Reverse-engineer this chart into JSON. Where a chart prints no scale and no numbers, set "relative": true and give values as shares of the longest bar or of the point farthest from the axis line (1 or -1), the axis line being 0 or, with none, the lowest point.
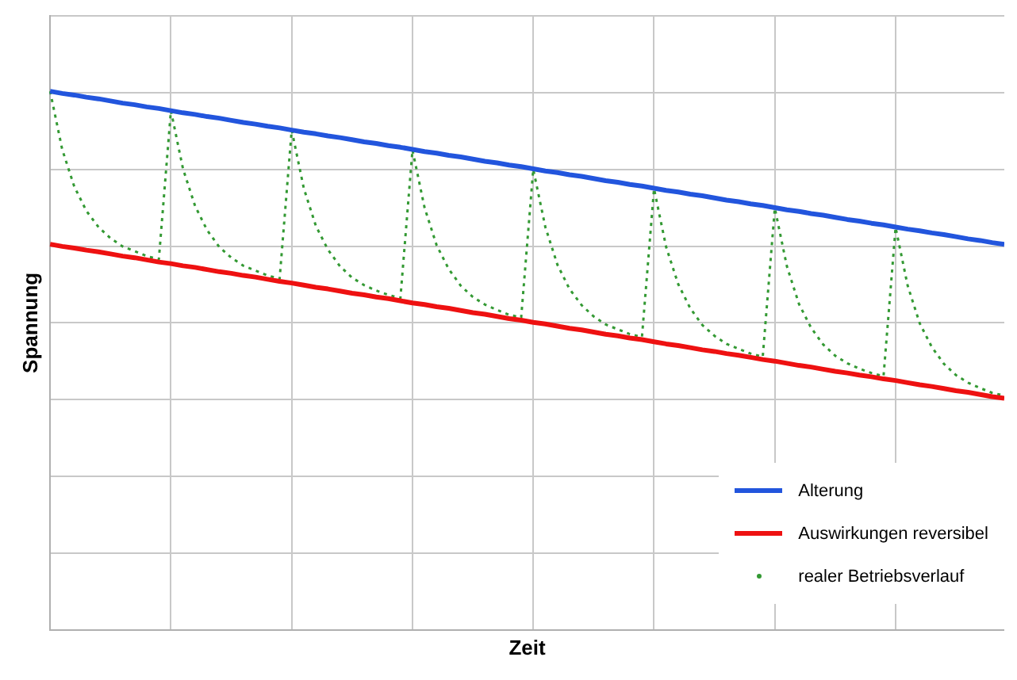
{
  "chart_data": {
    "type": "line",
    "relative": true,
    "xlabel": "Zeit",
    "ylabel": "Spannung",
    "grid": true,
    "legend": "bottom right",
    "categories": [
      null,
      null,
      null,
      null,
      null,
      null,
      null,
      null,
      null,
      null,
      null,
      null,
      null,
      null,
      null,
      null,
      null,
      null,
      null,
      null,
      null,
      null,
      null,
      null,
      null,
      null,
      null,
      null,
      null,
      null,
      null,
      null,
      null,
      null,
      null,
      null,
      null,
      null,
      null,
      null,
      null,
      null,
      null,
      null,
      null,
      null,
      null,
      null,
      null,
      null,
      null,
      null,
      null,
      null,
      null,
      null,
      null,
      null,
      null,
      null,
      null,
      null,
      null,
      null,
      null,
      null,
      null,
      null,
      null,
      null,
      null,
      null,
      null,
      null,
      null,
      null,
      null,
      null,
      null,
      null
    ],
    "series": [
      {
        "name": "Alterung",
        "color": "#2255dd",
        "line_style": "solid",
        "values": [
          1,
          0.996,
          0.993,
          0.989,
          0.986,
          0.982,
          0.978,
          0.975,
          0.971,
          0.968,
          0.964,
          0.96,
          0.957,
          0.953,
          0.95,
          0.946,
          0.942,
          0.939,
          0.935,
          0.932,
          0.928,
          0.924,
          0.921,
          0.917,
          0.914,
          0.91,
          0.906,
          0.903,
          0.899,
          0.896,
          0.892,
          0.888,
          0.885,
          0.881,
          0.878,
          0.874,
          0.87,
          0.867,
          0.863,
          0.86,
          0.856,
          0.852,
          0.849,
          0.845,
          0.842,
          0.838,
          0.834,
          0.831,
          0.827,
          0.824,
          0.82,
          0.816,
          0.813,
          0.809,
          0.806,
          0.802,
          0.798,
          0.795,
          0.791,
          0.788,
          0.784,
          0.78,
          0.777,
          0.773,
          0.77,
          0.766,
          0.762,
          0.759,
          0.755,
          0.752,
          0.748,
          0.744,
          0.741,
          0.737,
          0.734,
          0.73,
          0.726,
          0.723,
          0.719,
          0.716
        ]
      },
      {
        "name": "Auswirkungen reversibel",
        "color": "#ee1111",
        "line_style": "solid",
        "values": [
          0.716,
          0.712,
          0.709,
          0.705,
          0.702,
          0.698,
          0.694,
          0.691,
          0.687,
          0.683,
          0.68,
          0.676,
          0.673,
          0.669,
          0.665,
          0.662,
          0.658,
          0.655,
          0.651,
          0.647,
          0.644,
          0.64,
          0.636,
          0.633,
          0.629,
          0.625,
          0.622,
          0.618,
          0.615,
          0.611,
          0.607,
          0.604,
          0.6,
          0.597,
          0.593,
          0.589,
          0.586,
          0.582,
          0.578,
          0.575,
          0.571,
          0.568,
          0.564,
          0.56,
          0.557,
          0.553,
          0.549,
          0.546,
          0.542,
          0.539,
          0.535,
          0.531,
          0.528,
          0.524,
          0.52,
          0.517,
          0.513,
          0.51,
          0.506,
          0.502,
          0.499,
          0.495,
          0.491,
          0.488,
          0.484,
          0.48,
          0.477,
          0.473,
          0.47,
          0.466,
          0.463,
          0.459,
          0.455,
          0.452,
          0.448,
          0.444,
          0.441,
          0.437,
          0.433,
          0.43
        ]
      },
      {
        "name": "realer Betriebsverlauf",
        "color": "#339933",
        "line_style": "dotted",
        "values": [
          1.0,
          0.892,
          0.823,
          0.778,
          0.748,
          0.727,
          0.712,
          0.703,
          0.694,
          0.688,
          0.964,
          0.856,
          0.787,
          0.742,
          0.711,
          0.691,
          0.676,
          0.667,
          0.658,
          0.652,
          0.928,
          0.82,
          0.75,
          0.706,
          0.675,
          0.654,
          0.64,
          0.63,
          0.622,
          0.616,
          0.891,
          0.784,
          0.714,
          0.67,
          0.639,
          0.618,
          0.604,
          0.594,
          0.585,
          0.58,
          0.855,
          0.748,
          0.678,
          0.633,
          0.603,
          0.582,
          0.567,
          0.558,
          0.549,
          0.544,
          0.819,
          0.711,
          0.642,
          0.597,
          0.566,
          0.546,
          0.531,
          0.522,
          0.513,
          0.507,
          0.783,
          0.675,
          0.605,
          0.561,
          0.53,
          0.509,
          0.495,
          0.485,
          0.477,
          0.471,
          0.747,
          0.639,
          0.569,
          0.525,
          0.494,
          0.473,
          0.459,
          0.449,
          0.44,
          0.435
        ]
      }
    ]
  }
}
